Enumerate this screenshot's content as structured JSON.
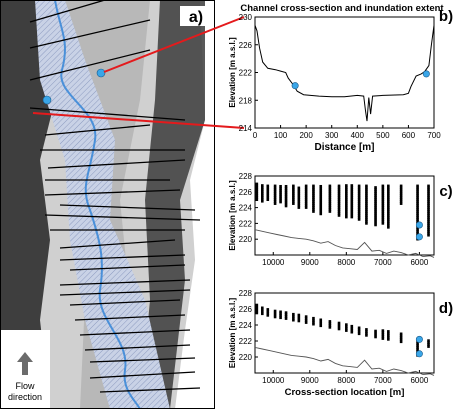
{
  "figure": {
    "panel_a": {
      "letter": "a)",
      "flow_label_line1": "Flow",
      "flow_label_line2": "direction"
    },
    "panel_b_title": "Channel cross-section and inundation extent",
    "panel_c_letter": "c)",
    "panel_d_letter": "d)"
  },
  "chart_data": [
    {
      "panel": "b)",
      "type": "line",
      "xlabel": "Distance [m]",
      "ylabel": "Elevation [m a.s.l.]",
      "xlim": [
        0,
        700
      ],
      "ylim": [
        214,
        230
      ],
      "xticks": [
        0,
        100,
        200,
        300,
        400,
        500,
        600,
        700
      ],
      "yticks": [
        214,
        218,
        222,
        226,
        230
      ],
      "profile_x": [
        0,
        8,
        18,
        30,
        50,
        80,
        100,
        120,
        130,
        150,
        165,
        190,
        250,
        300,
        350,
        400,
        425,
        432,
        438,
        445,
        452,
        460,
        500,
        580,
        600,
        610,
        630,
        650,
        658,
        665,
        680,
        690,
        700
      ],
      "profile_y": [
        228.8,
        228,
        225.5,
        223.5,
        222.6,
        222.4,
        222.2,
        222,
        221.2,
        220.2,
        219.3,
        218.8,
        218.6,
        218.5,
        218.5,
        218.7,
        218.6,
        216.5,
        215,
        218.4,
        216,
        218.6,
        218.7,
        218.8,
        219,
        220,
        221.5,
        221.8,
        222,
        222.2,
        223,
        226,
        228.8
      ],
      "markers": [
        {
          "x": 157,
          "y": 220.1
        },
        {
          "x": 670,
          "y": 221.8
        }
      ],
      "marker_color": "#3aa6e8"
    },
    {
      "panel": "c)",
      "type": "scatter",
      "xlabel": "",
      "ylabel": "Elevation [m a.s.l.]",
      "xlim": [
        10500,
        5600
      ],
      "ylim": [
        218,
        228
      ],
      "xticks": [
        10000,
        9000,
        8000,
        7000,
        6000
      ],
      "yticks": [
        220,
        222,
        224,
        226,
        228
      ],
      "columns": [
        {
          "x": 10450,
          "ymin": 225.0,
          "ymax": 227.0
        },
        {
          "x": 10300,
          "ymin": 224.8,
          "ymax": 226.9
        },
        {
          "x": 10150,
          "ymin": 225.0,
          "ymax": 226.8
        },
        {
          "x": 9950,
          "ymin": 224.5,
          "ymax": 226.8
        },
        {
          "x": 9800,
          "ymin": 224.7,
          "ymax": 226.9
        },
        {
          "x": 9650,
          "ymin": 224.2,
          "ymax": 226.9
        },
        {
          "x": 9450,
          "ymin": 224.5,
          "ymax": 226.8
        },
        {
          "x": 9300,
          "ymin": 224.0,
          "ymax": 226.7
        },
        {
          "x": 9100,
          "ymin": 224.0,
          "ymax": 226.9
        },
        {
          "x": 8900,
          "ymin": 223.5,
          "ymax": 226.8
        },
        {
          "x": 8700,
          "ymin": 223.2,
          "ymax": 226.8
        },
        {
          "x": 8450,
          "ymin": 223.5,
          "ymax": 226.9
        },
        {
          "x": 8200,
          "ymin": 223.0,
          "ymax": 226.8
        },
        {
          "x": 8000,
          "ymin": 222.8,
          "ymax": 226.9
        },
        {
          "x": 7850,
          "ymin": 222.8,
          "ymax": 226.8
        },
        {
          "x": 7650,
          "ymin": 222.5,
          "ymax": 226.8
        },
        {
          "x": 7450,
          "ymin": 222.0,
          "ymax": 226.9
        },
        {
          "x": 7200,
          "ymin": 221.8,
          "ymax": 226.7
        },
        {
          "x": 7000,
          "ymin": 222.0,
          "ymax": 226.8
        },
        {
          "x": 6850,
          "ymin": 221.5,
          "ymax": 226.9
        },
        {
          "x": 6500,
          "ymin": 224.5,
          "ymax": 226.8
        },
        {
          "x": 6050,
          "ymin": 220.0,
          "ymax": 226.9
        },
        {
          "x": 5750,
          "ymin": 220.5,
          "ymax": 226.8
        }
      ],
      "bed_x": [
        10500,
        10300,
        10100,
        9900,
        9700,
        9500,
        9300,
        9100,
        8900,
        8700,
        8500,
        8300,
        8100,
        7900,
        7700,
        7500,
        7300,
        7100,
        6900,
        6700,
        6500,
        6300,
        6100,
        5900,
        5700,
        5600
      ],
      "bed_y": [
        221.2,
        221.0,
        220.8,
        220.6,
        220.4,
        220.2,
        220.1,
        220.0,
        219.8,
        219.5,
        219.7,
        219.2,
        218.9,
        218.8,
        218.7,
        219.6,
        218.5,
        218.6,
        218.2,
        218.5,
        218.3,
        218.0,
        218.2,
        217.8,
        217.9,
        217.7
      ],
      "markers": [
        {
          "x": 6000,
          "y": 221.8
        },
        {
          "x": 6000,
          "y": 220.3
        }
      ],
      "marker_color": "#3aa6e8"
    },
    {
      "panel": "d)",
      "type": "scatter",
      "xlabel": "Cross-section location [m]",
      "ylabel": "Elevation [m a.s.l.]",
      "xlim": [
        10500,
        5600
      ],
      "ylim": [
        218,
        228
      ],
      "xticks": [
        10000,
        9000,
        8000,
        7000,
        6000
      ],
      "yticks": [
        220,
        222,
        224,
        226,
        228
      ],
      "columns": [
        {
          "x": 10450,
          "ymin": 225.5,
          "ymax": 226.6
        },
        {
          "x": 10300,
          "ymin": 225.4,
          "ymax": 226.2
        },
        {
          "x": 10150,
          "ymin": 225.2,
          "ymax": 226.0
        },
        {
          "x": 9950,
          "ymin": 225.0,
          "ymax": 225.8
        },
        {
          "x": 9800,
          "ymin": 224.9,
          "ymax": 225.7
        },
        {
          "x": 9650,
          "ymin": 224.8,
          "ymax": 225.6
        },
        {
          "x": 9450,
          "ymin": 224.6,
          "ymax": 225.4
        },
        {
          "x": 9300,
          "ymin": 224.5,
          "ymax": 225.3
        },
        {
          "x": 9100,
          "ymin": 224.3,
          "ymax": 225.2
        },
        {
          "x": 8900,
          "ymin": 224.1,
          "ymax": 225.0
        },
        {
          "x": 8700,
          "ymin": 223.9,
          "ymax": 224.8
        },
        {
          "x": 8450,
          "ymin": 223.7,
          "ymax": 224.6
        },
        {
          "x": 8200,
          "ymin": 223.5,
          "ymax": 224.4
        },
        {
          "x": 8000,
          "ymin": 223.3,
          "ymax": 224.2
        },
        {
          "x": 7850,
          "ymin": 223.1,
          "ymax": 224.0
        },
        {
          "x": 7650,
          "ymin": 222.9,
          "ymax": 223.8
        },
        {
          "x": 7450,
          "ymin": 222.7,
          "ymax": 223.6
        },
        {
          "x": 7200,
          "ymin": 222.5,
          "ymax": 223.4
        },
        {
          "x": 7000,
          "ymin": 222.3,
          "ymax": 223.3
        },
        {
          "x": 6850,
          "ymin": 222.2,
          "ymax": 223.2
        },
        {
          "x": 6500,
          "ymin": 221.9,
          "ymax": 222.9
        },
        {
          "x": 6050,
          "ymin": 220.2,
          "ymax": 222.4
        },
        {
          "x": 5750,
          "ymin": 221.3,
          "ymax": 222.1
        }
      ],
      "bed_x": [
        10500,
        10300,
        10100,
        9900,
        9700,
        9500,
        9300,
        9100,
        8900,
        8700,
        8500,
        8300,
        8100,
        7900,
        7700,
        7500,
        7300,
        7100,
        6900,
        6700,
        6500,
        6300,
        6100,
        5900,
        5700,
        5600
      ],
      "bed_y": [
        221.2,
        221.0,
        220.8,
        220.6,
        220.4,
        220.2,
        220.1,
        220.0,
        219.8,
        219.5,
        219.7,
        219.2,
        218.9,
        218.8,
        218.7,
        219.6,
        218.5,
        218.6,
        218.2,
        218.5,
        218.3,
        218.0,
        218.2,
        217.8,
        217.9,
        217.7
      ],
      "markers": [
        {
          "x": 6000,
          "y": 222.2
        },
        {
          "x": 6000,
          "y": 220.4
        }
      ],
      "marker_color": "#3aa6e8"
    }
  ]
}
